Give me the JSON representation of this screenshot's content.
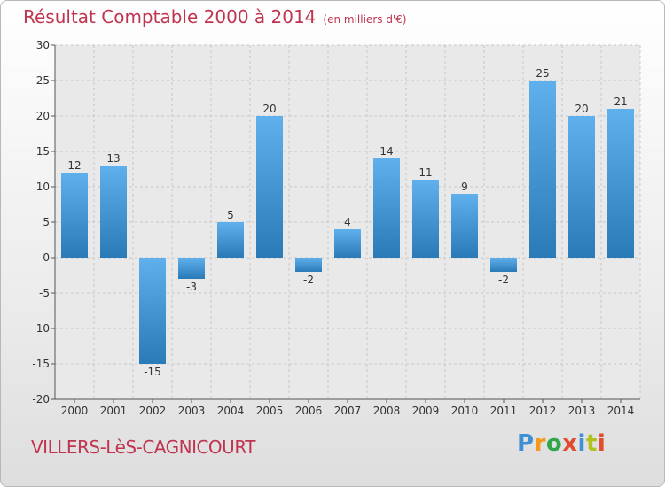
{
  "header": {
    "title": "Résultat Comptable 2000 à 2014",
    "unit": "(en milliers d'€)"
  },
  "footer": {
    "place": "VILLERS-LèS-CAGNICOURT",
    "logo": [
      "P",
      "r",
      "o",
      "x",
      "i",
      "t",
      "i"
    ]
  },
  "colors": {
    "bar_top": "#5fb0ec",
    "bar_bottom": "#2a7ab8",
    "title": "#c0344f"
  },
  "chart_data": {
    "type": "bar",
    "title": "Résultat Comptable 2000 à 2014",
    "xlabel": "",
    "ylabel": "",
    "ylim": [
      -20,
      30
    ],
    "yticks": [
      30,
      25,
      20,
      15,
      10,
      5,
      0,
      -5,
      -10,
      -15,
      -20
    ],
    "grid": true,
    "categories": [
      "2000",
      "2001",
      "2002",
      "2003",
      "2004",
      "2005",
      "2006",
      "2007",
      "2008",
      "2009",
      "2010",
      "2011",
      "2012",
      "2013",
      "2014"
    ],
    "values": [
      12,
      13,
      -15,
      -3,
      5,
      20,
      -2,
      4,
      14,
      11,
      9,
      -2,
      25,
      20,
      21
    ]
  }
}
